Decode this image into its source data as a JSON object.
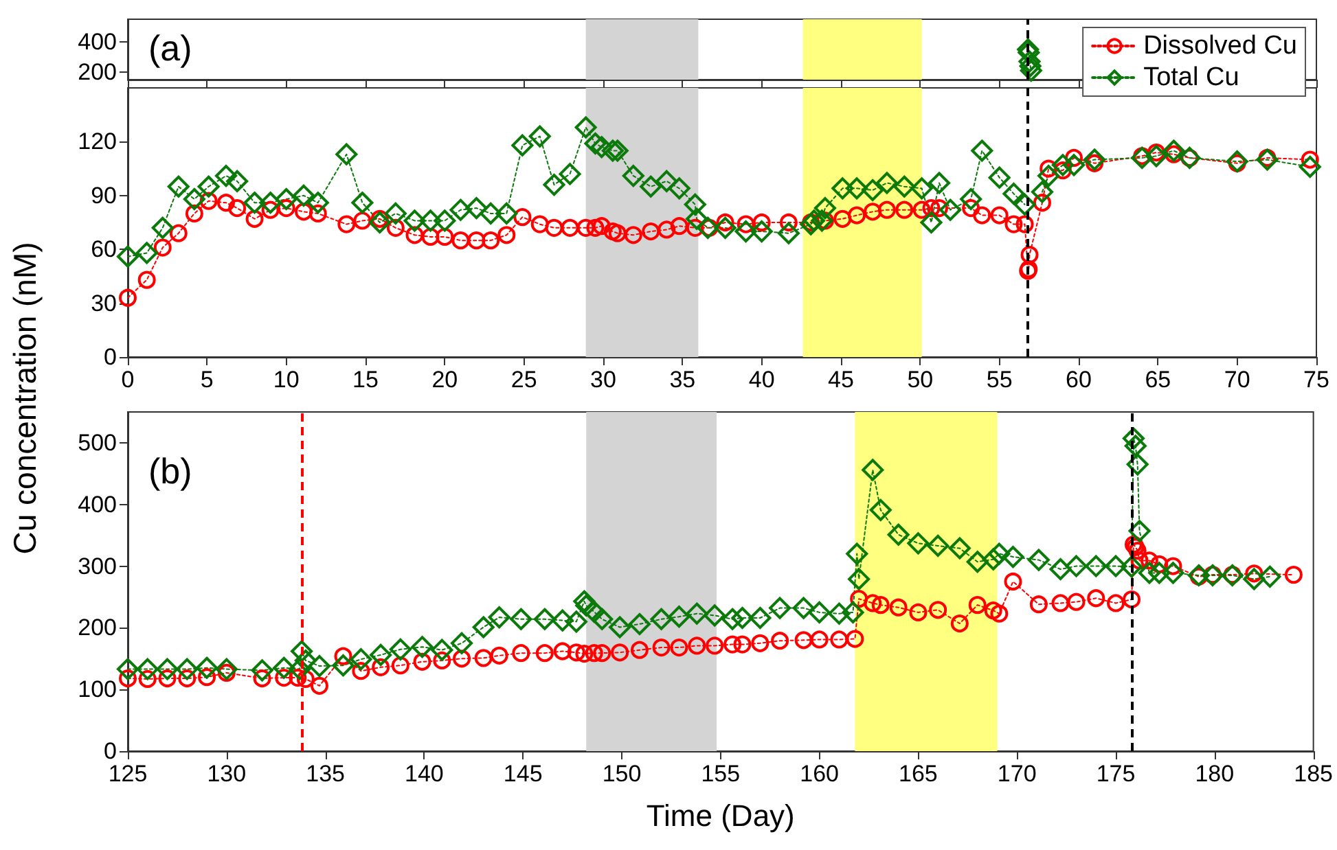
{
  "chart_data": [
    {
      "type": "line",
      "annotations": [
        "(a)"
      ],
      "xlim": [
        0,
        75
      ],
      "xticks": [
        0,
        5,
        10,
        15,
        20,
        25,
        30,
        35,
        40,
        45,
        50,
        55,
        60,
        65,
        70,
        75
      ],
      "ylim": [
        150,
        550
      ],
      "yticks": [
        200,
        400
      ],
      "tick_labels": "y",
      "grid": false,
      "line_style": "dotted",
      "series": [
        {
          "color": "#0b7a0b",
          "marker": "diamond",
          "x": [
            56.8,
            56.85,
            56.9,
            56.95,
            57.0
          ],
          "values": [
            350,
            330,
            270,
            240,
            210
          ]
        }
      ],
      "bands": [
        {
          "axis": "x",
          "from": 28.9,
          "to": 36.0,
          "color": "#d4d4d4"
        },
        {
          "axis": "x",
          "from": 42.6,
          "to": 50.1,
          "color": "#ffff80"
        }
      ],
      "ref_lines": [
        {
          "axis": "x",
          "value": 56.8,
          "color": "#000000",
          "line_style": "dashed"
        }
      ]
    },
    {
      "type": "line",
      "ylabel": "Cu concentration (nM)",
      "xlim": [
        0,
        75
      ],
      "xticks": [
        0,
        5,
        10,
        15,
        20,
        25,
        30,
        35,
        40,
        45,
        50,
        55,
        60,
        65,
        70,
        75
      ],
      "ylim": [
        0,
        150
      ],
      "yticks": [
        0,
        30,
        60,
        90,
        120
      ],
      "grid": false,
      "legend": "top right",
      "line_style": "dotted",
      "series": [
        {
          "name": "Dissolved Cu",
          "color": "#ff0000",
          "marker": "circle",
          "x": [
            0,
            1.2,
            2.2,
            3.2,
            4.2,
            5.1,
            6.2,
            6.9,
            8.0,
            9.0,
            10.0,
            11.1,
            12.0,
            13.8,
            14.8,
            15.9,
            16.9,
            18.1,
            19.1,
            20.0,
            21.0,
            22.0,
            22.9,
            23.9,
            24.9,
            26.0,
            26.9,
            27.9,
            28.9,
            29.5,
            29.9,
            30.6,
            30.9,
            31.9,
            33.0,
            34.0,
            34.8,
            35.8,
            36.7,
            37.7,
            39.0,
            40.0,
            41.7,
            43.1,
            44.0,
            45.1,
            46.0,
            47.0,
            47.9,
            49.0,
            50.1,
            50.7,
            51.2,
            53.2,
            53.9,
            55.0,
            55.9,
            56.6,
            56.8,
            56.85,
            56.9,
            57.7,
            58.1,
            59.0,
            59.7,
            61.0,
            64.0,
            64.9,
            66.0,
            67.0,
            70.0,
            71.9,
            74.6
          ],
          "values": [
            33,
            43,
            61,
            69,
            80,
            87,
            86,
            83,
            77,
            82,
            83,
            81,
            80,
            74,
            76,
            77,
            72,
            68,
            67,
            67,
            65,
            65,
            65,
            68,
            78,
            74,
            72,
            72,
            72,
            72,
            73,
            70,
            69,
            68,
            70,
            71,
            73,
            72,
            72,
            75,
            74,
            75,
            75,
            75,
            76,
            77,
            79,
            81,
            82,
            82,
            82,
            83,
            83,
            83,
            79,
            79,
            74,
            74,
            48,
            49,
            57,
            86,
            105,
            104,
            111,
            108,
            112,
            114,
            113,
            111,
            108,
            111,
            110
          ]
        },
        {
          "name": "Total Cu",
          "color": "#0b7a0b",
          "marker": "diamond",
          "x": [
            0,
            1.2,
            2.2,
            3.2,
            4.2,
            5.1,
            6.2,
            6.9,
            8.0,
            9.0,
            10.0,
            11.1,
            12.0,
            13.8,
            14.8,
            15.9,
            16.9,
            18.1,
            19.1,
            20.0,
            21.0,
            22.0,
            22.9,
            23.9,
            24.9,
            26.0,
            26.9,
            27.9,
            28.9,
            29.5,
            29.9,
            30.6,
            30.9,
            31.9,
            33.0,
            34.0,
            34.8,
            35.8,
            35.9,
            36.6,
            37.7,
            39.0,
            40.0,
            41.7,
            43.1,
            43.3,
            43.8,
            44.0,
            45.1,
            46.0,
            47.0,
            47.9,
            49.0,
            50.1,
            50.7,
            51.2,
            51.9,
            53.2,
            53.9,
            55.0,
            55.9,
            56.6,
            56.8,
            57.7,
            58.1,
            59.0,
            59.7,
            61.0,
            64.0,
            64.9,
            66.0,
            67.0,
            70.0,
            71.9,
            74.6
          ],
          "values": [
            56,
            58,
            72,
            95,
            88,
            95,
            101,
            98,
            86,
            86,
            88,
            90,
            86,
            113,
            86,
            75,
            80,
            76,
            76,
            76,
            82,
            83,
            80,
            80,
            118,
            123,
            96,
            102,
            128,
            119,
            117,
            115,
            115,
            101,
            95,
            98,
            94,
            85,
            77,
            72,
            72,
            70,
            70,
            69,
            74,
            76,
            76,
            83,
            94,
            94,
            93,
            97,
            95,
            94,
            75,
            97,
            82,
            88,
            115,
            100,
            91,
            85,
            null,
            92,
            101,
            107,
            107,
            110,
            111,
            112,
            115,
            111,
            109,
            110,
            106
          ]
        }
      ],
      "bands": [
        {
          "axis": "x",
          "from": 28.9,
          "to": 36.0,
          "color": "#d4d4d4"
        },
        {
          "axis": "x",
          "from": 42.6,
          "to": 50.1,
          "color": "#ffff80"
        }
      ],
      "ref_lines": [
        {
          "axis": "x",
          "value": 56.8,
          "color": "#000000",
          "line_style": "dashed"
        }
      ]
    },
    {
      "type": "line",
      "annotations": [
        "(b)"
      ],
      "xlabel": "Time (Day)",
      "xlim": [
        125,
        185
      ],
      "xticks": [
        125,
        130,
        135,
        140,
        145,
        150,
        155,
        160,
        165,
        170,
        175,
        180,
        185
      ],
      "ylim": [
        0,
        550
      ],
      "yticks": [
        0,
        100,
        200,
        300,
        400,
        500
      ],
      "grid": false,
      "line_style": "dotted",
      "series": [
        {
          "color": "#ff0000",
          "marker": "circle",
          "x": [
            125,
            126,
            127,
            128,
            129,
            130,
            131.8,
            132.9,
            133.6,
            134.0,
            134.7,
            135.9,
            136.8,
            137.8,
            138.8,
            139.9,
            140.9,
            141.9,
            143.0,
            143.8,
            144.9,
            146.1,
            147.0,
            147.7,
            148.1,
            148.6,
            149.0,
            149.9,
            150.9,
            152.0,
            152.9,
            153.8,
            154.7,
            155.6,
            156.1,
            157.0,
            158.0,
            159.2,
            160.0,
            161.0,
            161.8,
            162.0,
            162.7,
            163.1,
            164.0,
            165.0,
            166.0,
            167.1,
            168.0,
            168.8,
            169.1,
            169.8,
            171.1,
            172.2,
            173.0,
            174.0,
            175.0,
            175.8,
            175.9,
            176.0,
            176.1,
            176.2,
            176.7,
            177.2,
            177.9,
            179.2,
            179.9,
            180.9,
            182.0,
            184.0
          ],
          "values": [
            118,
            117,
            118,
            118,
            120,
            127,
            118,
            119,
            119,
            117,
            106,
            154,
            130,
            136,
            139,
            145,
            147,
            150,
            151,
            155,
            159,
            159,
            162,
            160,
            158,
            159,
            159,
            160,
            164,
            168,
            168,
            171,
            171,
            173,
            173,
            175,
            179,
            180,
            181,
            181,
            182,
            247,
            240,
            237,
            233,
            225,
            229,
            207,
            237,
            228,
            223,
            275,
            238,
            240,
            242,
            248,
            240,
            246,
            335,
            331,
            325,
            309,
            309,
            303,
            300,
            283,
            286,
            286,
            288,
            286
          ]
        },
        {
          "color": "#0b7a0b",
          "marker": "diamond",
          "x": [
            125,
            126,
            127,
            128,
            129,
            130,
            131.8,
            132.9,
            133.7,
            133.8,
            134.0,
            134.7,
            135.9,
            136.8,
            137.8,
            138.8,
            139.9,
            140.9,
            141.9,
            143.0,
            143.8,
            144.9,
            146.1,
            147.0,
            147.7,
            148.1,
            148.2,
            148.6,
            149.0,
            149.9,
            150.9,
            152.0,
            152.9,
            153.8,
            154.7,
            155.6,
            156.1,
            157.0,
            158.0,
            159.2,
            160.0,
            161.0,
            161.7,
            161.9,
            162.0,
            162.7,
            163.1,
            164.0,
            165.0,
            166.0,
            167.1,
            168.0,
            168.8,
            169.1,
            169.8,
            171.1,
            172.2,
            173.0,
            174.0,
            175.0,
            175.8,
            175.9,
            176.0,
            176.1,
            176.2,
            176.7,
            177.2,
            177.9,
            179.2,
            179.9,
            180.9,
            182.0,
            182.8
          ],
          "values": [
            133,
            133,
            133,
            133,
            135,
            133,
            131,
            135,
            133,
            162,
            147,
            138,
            139,
            149,
            156,
            165,
            169,
            164,
            175,
            201,
            217,
            214,
            214,
            212,
            210,
            243,
            236,
            226,
            214,
            201,
            206,
            214,
            218,
            223,
            220,
            214,
            216,
            216,
            232,
            232,
            225,
            223,
            225,
            320,
            279,
            456,
            391,
            351,
            337,
            333,
            329,
            307,
            311,
            320,
            315,
            310,
            295,
            300,
            300,
            300,
            299,
            507,
            495,
            465,
            357,
            289,
            289,
            289,
            285,
            285,
            285,
            279,
            283
          ]
        }
      ],
      "bands": [
        {
          "axis": "x",
          "from": 148.2,
          "to": 154.8,
          "color": "#d4d4d4"
        },
        {
          "axis": "x",
          "from": 161.8,
          "to": 169.0,
          "color": "#ffff80"
        }
      ],
      "ref_lines": [
        {
          "axis": "x",
          "value": 133.8,
          "color": "#ff0000",
          "line_style": "dashed"
        },
        {
          "axis": "x",
          "value": 175.8,
          "color": "#000000",
          "line_style": "dashed"
        }
      ]
    }
  ]
}
